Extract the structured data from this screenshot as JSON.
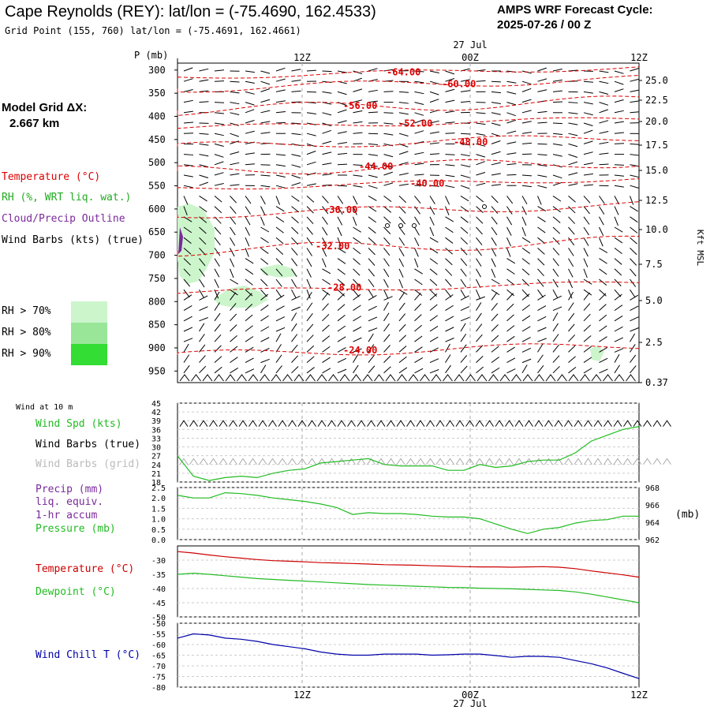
{
  "header": {
    "title": "Cape Reynolds (REY):  lat/lon = (-75.4690, 162.4533)",
    "grid_point": "Grid Point (155, 760) lat/lon = (-75.4691, 162.4661)",
    "cycle_label": "AMPS WRF Forecast Cycle:",
    "cycle_value": "2025-07-26 / 00  Z",
    "model_grid_label": "Model Grid ΔX:",
    "model_grid_value": "2.667 km"
  },
  "time_axis": {
    "top_date": "27  Jul",
    "bottom_date": "27  Jul",
    "labels": [
      "12Z",
      "00Z",
      "12Z"
    ]
  },
  "legend": {
    "temperature": "Temperature (°C)",
    "rh": "RH (%, WRT liq. wat.)",
    "cloud": "Cloud/Precip Outline",
    "wind": "Wind Barbs (kts) (true)",
    "rh70": "RH > 70%",
    "rh80": "RH > 80%",
    "rh90": "RH > 90%",
    "colors": {
      "temperature": "#dd0000",
      "rh": "#22aa22",
      "cloud": "#7a2a9a",
      "rh70": "#ccf5cc",
      "rh80": "#99e699",
      "rh90": "#33dd33"
    }
  },
  "chart_data": [
    {
      "type": "contour",
      "ylabel": "P (mb)",
      "y_ticks_left": [
        "300",
        "350",
        "400",
        "450",
        "500",
        "550",
        "600",
        "650",
        "700",
        "750",
        "800",
        "850",
        "900",
        "950"
      ],
      "y_ticks_right": [
        "25.0",
        "22.5",
        "20.0",
        "17.5",
        "15.0",
        "12.5",
        "10.0",
        "7.5",
        "5.0",
        "2.5",
        "0.37"
      ],
      "y_right_label": "Kft MSL",
      "ylim": [
        300,
        975
      ],
      "temperature_contours": [
        {
          "label": "-64.00",
          "p": 305
        },
        {
          "label": "-60.00",
          "p": 330
        },
        {
          "label": "-56.00",
          "p": 377
        },
        {
          "label": "-52.00",
          "p": 415
        },
        {
          "label": "-48.00",
          "p": 455
        },
        {
          "label": "-44.00",
          "p": 508
        },
        {
          "label": "-40.00",
          "p": 545
        },
        {
          "label": "-36.00",
          "p": 602
        },
        {
          "label": "-32.00",
          "p": 680
        },
        {
          "label": "-28.00",
          "p": 770
        },
        {
          "label": "-24.00",
          "p": 905
        }
      ]
    },
    {
      "type": "line",
      "legend": [
        "Wind Spd (kts)",
        "Wind Barbs (true)",
        "Wind Barbs (grid)"
      ],
      "panel_label": "Wind at 10 m",
      "y_ticks": [
        "45",
        "42",
        "39",
        "36",
        "33",
        "30",
        "27",
        "24",
        "21",
        "18"
      ],
      "ylim": [
        18,
        45
      ],
      "series": [
        {
          "name": "Wind Spd (kts)",
          "color": "#22bb22",
          "values": [
            27,
            20,
            18.5,
            19.5,
            20,
            19.5,
            21,
            22,
            22.5,
            24.5,
            25,
            25.5,
            26,
            24,
            23.5,
            23.5,
            23.5,
            22,
            22,
            24,
            23,
            23.5,
            25,
            25.5,
            25.5,
            28,
            32,
            34,
            36,
            37
          ]
        }
      ]
    },
    {
      "type": "line",
      "legend": [
        "Precip (mm)",
        "liq. equiv.",
        "1-hr accum",
        "Pressure (mb)"
      ],
      "y_ticks_left": [
        "2.5",
        "2.0",
        "1.5",
        "1.0",
        "0.5",
        "0.0"
      ],
      "y_ticks_right": [
        "968",
        "966",
        "964",
        "962"
      ],
      "y_right_label": "(mb)",
      "ylim_left": [
        0,
        2.5
      ],
      "ylim_right": [
        962,
        968
      ],
      "series": [
        {
          "name": "Pressure (mb)",
          "color": "#22bb22",
          "values": [
            967.1,
            966.8,
            966.8,
            967.4,
            967.3,
            967.1,
            966.8,
            966.6,
            966.4,
            966.1,
            965.7,
            964.9,
            965.1,
            965.0,
            965.0,
            964.9,
            964.7,
            964.6,
            964.6,
            964.4,
            963.8,
            963.2,
            962.7,
            963.2,
            963.4,
            963.9,
            964.2,
            964.3,
            964.7,
            964.7
          ]
        }
      ]
    },
    {
      "type": "line",
      "legend": [
        "Temperature (°C)",
        "Dewpoint (°C)"
      ],
      "y_ticks": [
        "-30",
        "-35",
        "-40",
        "-45",
        "-50"
      ],
      "ylim": [
        -50,
        -25
      ],
      "series": [
        {
          "name": "Temperature (°C)",
          "color": "#cc0000",
          "values": [
            -27,
            -27.5,
            -28.2,
            -28.8,
            -29.3,
            -29.8,
            -30.2,
            -30.4,
            -30.6,
            -30.9,
            -31.0,
            -31.2,
            -31.4,
            -31.6,
            -31.7,
            -31.8,
            -32.0,
            -32.1,
            -32.3,
            -32.4,
            -32.4,
            -32.5,
            -32.4,
            -32.3,
            -32.5,
            -33.0,
            -33.8,
            -34.5,
            -35.2,
            -36.0
          ]
        },
        {
          "name": "Dewpoint (°C)",
          "color": "#22bb22",
          "values": [
            -35,
            -34.6,
            -35.0,
            -35.5,
            -36.0,
            -36.5,
            -36.8,
            -37.1,
            -37.4,
            -37.7,
            -38.0,
            -38.3,
            -38.6,
            -38.8,
            -39.0,
            -39.2,
            -39.4,
            -39.6,
            -39.7,
            -39.9,
            -40.0,
            -40.1,
            -40.3,
            -40.5,
            -40.7,
            -41.2,
            -42.0,
            -43.0,
            -44.0,
            -45.0
          ]
        }
      ]
    },
    {
      "type": "line",
      "legend": [
        "Wind Chill T (°C)"
      ],
      "y_ticks": [
        "-50",
        "-55",
        "-60",
        "-65",
        "-70",
        "-75",
        "-80"
      ],
      "ylim": [
        -80,
        -50
      ],
      "series": [
        {
          "name": "Wind Chill T (°C)",
          "color": "#0000aa",
          "values": [
            -57,
            -55,
            -55.5,
            -57,
            -57.5,
            -58.5,
            -60,
            -61,
            -62,
            -63.5,
            -64.5,
            -65,
            -65,
            -64.5,
            -64.5,
            -64.5,
            -65,
            -64.8,
            -64.5,
            -64.5,
            -65.2,
            -66,
            -65.5,
            -65.6,
            -66,
            -67.5,
            -69,
            -71,
            -73.5,
            -76
          ]
        }
      ]
    }
  ]
}
